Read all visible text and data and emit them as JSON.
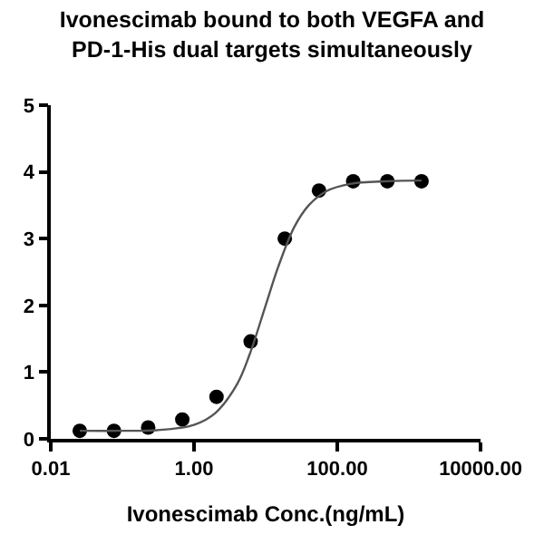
{
  "chart_data": {
    "type": "scatter",
    "title": "Ivonescimab bound to both VEGFA and PD-1-His dual targets simultaneously",
    "xlabel": "Ivonescimab Conc.(ng/mL)",
    "log": "x",
    "xlim": [
      0.01,
      10000
    ],
    "xticks": [
      {
        "value": 0.01,
        "label": "0.01"
      },
      {
        "value": 1,
        "label": "1.00"
      },
      {
        "value": 100,
        "label": "100.00"
      },
      {
        "value": 10000,
        "label": "10000.00"
      }
    ],
    "ylim": [
      0,
      5
    ],
    "yticks": [
      0,
      1,
      2,
      3,
      4,
      5
    ],
    "grid": false,
    "legend": false,
    "series": [
      {
        "color": "#000000",
        "marker": "circle",
        "x": [
          0.0254,
          0.0762,
          0.229,
          0.686,
          2.06,
          6.17,
          18.5,
          55.6,
          166.7,
          500,
          1500
        ],
        "values": [
          0.12,
          0.12,
          0.17,
          0.29,
          0.63,
          1.46,
          3.0,
          3.72,
          3.86,
          3.86,
          3.86
        ]
      },
      {
        "type": "line",
        "color": "#555555",
        "marker": "none",
        "line_style": "solid",
        "x": [
          0.0254,
          0.1,
          0.3,
          1,
          2,
          4,
          6,
          10,
          15,
          25,
          40,
          70,
          150,
          500,
          1500
        ],
        "values": [
          0.12,
          0.12,
          0.13,
          0.21,
          0.39,
          0.82,
          1.27,
          2.0,
          2.58,
          3.17,
          3.5,
          3.71,
          3.82,
          3.86,
          3.87
        ]
      }
    ]
  }
}
